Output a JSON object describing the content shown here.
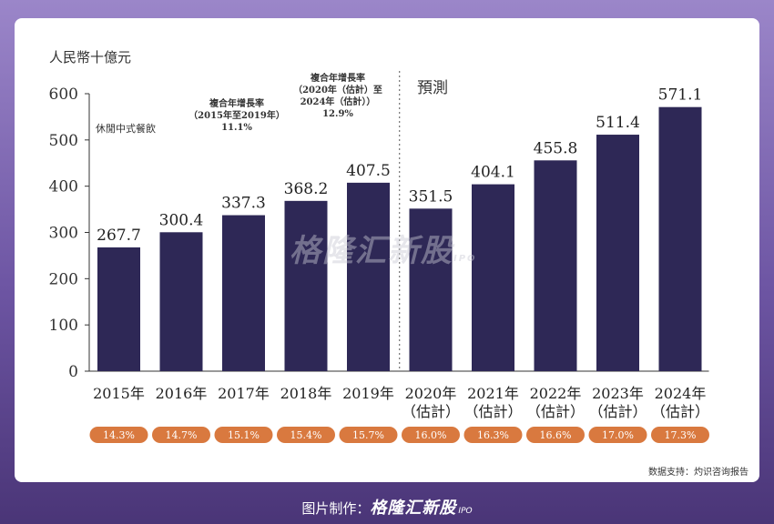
{
  "chart_data": {
    "type": "bar",
    "unit_label": "人民幣十億元",
    "categories": [
      {
        "year": "2015年",
        "est": ""
      },
      {
        "year": "2016年",
        "est": ""
      },
      {
        "year": "2017年",
        "est": ""
      },
      {
        "year": "2018年",
        "est": ""
      },
      {
        "year": "2019年",
        "est": ""
      },
      {
        "year": "2020年",
        "est": "（估計）"
      },
      {
        "year": "2021年",
        "est": "（估計）"
      },
      {
        "year": "2022年",
        "est": "（估計）"
      },
      {
        "year": "2023年",
        "est": "（估計）"
      },
      {
        "year": "2024年",
        "est": "（估計）"
      }
    ],
    "values": [
      267.7,
      300.4,
      337.3,
      368.2,
      407.5,
      351.5,
      404.1,
      455.8,
      511.4,
      571.1
    ],
    "value_labels": [
      "267.7",
      "300.4",
      "337.3",
      "368.2",
      "407.5",
      "351.5",
      "404.1",
      "455.8",
      "511.4",
      "571.1"
    ],
    "growth_rates": [
      "14.3%",
      "14.7%",
      "15.1%",
      "15.4%",
      "15.7%",
      "16.0%",
      "16.3%",
      "16.6%",
      "17.0%",
      "17.3%"
    ],
    "ylim": [
      0,
      600
    ],
    "yticks": [
      0,
      100,
      200,
      300,
      400,
      500,
      600
    ],
    "forecast_label": "預測",
    "legend_label": "休閒中式餐飲",
    "cagr_hist": {
      "line1": "複合年增長率",
      "line2": "（2015年至2019年）",
      "value": "11.1%"
    },
    "cagr_fcst": {
      "line1": "複合年增長率",
      "line2": "（2020年（估計）至",
      "line3": "2024年（估計））",
      "value": "12.9%"
    },
    "colors": {
      "bar": "#2e2856",
      "pill": "#d9793f",
      "pill_text": "#ffffff",
      "axis": "#333333"
    }
  },
  "source": "数据支持：灼识咨询报告",
  "footer": {
    "prefix": "图片制作：",
    "brand": "格隆汇新股",
    "ipo": "IPO"
  },
  "watermark": {
    "brand": "格隆汇新股",
    "ipo": "IPO"
  }
}
